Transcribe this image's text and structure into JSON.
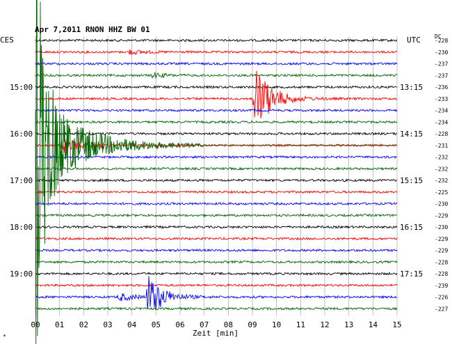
{
  "chart_data": {
    "type": "line",
    "title": "Apr 7,2011    RNON HHZ BW 01",
    "left_corner_label": "CES",
    "right_corner_label": "UTC",
    "dc_header": "DC",
    "xlabel": "Zeit [min]",
    "x_ticks": [
      "00",
      "01",
      "02",
      "03",
      "04",
      "05",
      "06",
      "07",
      "08",
      "09",
      "10",
      "11",
      "12",
      "13",
      "14",
      "15"
    ],
    "xlim": [
      0,
      15
    ],
    "left_hour_labels": [
      {
        "trace": 4,
        "label": "15:00"
      },
      {
        "trace": 8,
        "label": "16:00"
      },
      {
        "trace": 12,
        "label": "17:00"
      },
      {
        "trace": 16,
        "label": "18:00"
      },
      {
        "trace": 20,
        "label": "19:00"
      }
    ],
    "right_hour_labels": [
      {
        "trace": 4,
        "label": "13:15"
      },
      {
        "trace": 8,
        "label": "14:15"
      },
      {
        "trace": 12,
        "label": "15:15"
      },
      {
        "trace": 16,
        "label": "16:15"
      },
      {
        "trace": 20,
        "label": "17:15"
      }
    ],
    "dc_offsets": [
      "-228",
      "-230",
      "-237",
      "-237",
      "-236",
      "-233",
      "-234",
      "-234",
      "-228",
      "-231",
      "-232",
      "-232",
      "-232",
      "-225",
      "-230",
      "-229",
      "-230",
      "-229",
      "-229",
      "-228",
      "-228",
      "-239",
      "-226",
      "-227"
    ],
    "trace_colors": [
      "#000000",
      "#ff0000",
      "#0000ff",
      "#006400"
    ],
    "events": [
      {
        "trace": 1,
        "start_min": 3.8,
        "peak": 4,
        "decay": 1.5
      },
      {
        "trace": 3,
        "start_min": 4.8,
        "peak": 5,
        "decay": 1.2
      },
      {
        "trace": 5,
        "start_min": 9.0,
        "peak": 60,
        "decay": 1.8
      },
      {
        "trace": 9,
        "start_min": 0.0,
        "peak": 85,
        "decay": 3.5,
        "color": "#006400"
      },
      {
        "trace": 9,
        "start_min": 1.0,
        "peak": 12,
        "decay": 2.2
      },
      {
        "trace": 22,
        "start_min": 3.4,
        "peak": 6,
        "decay": 1.8
      },
      {
        "trace": 22,
        "start_min": 4.6,
        "peak": 38,
        "decay": 1.6
      }
    ],
    "grid": true,
    "corner_mark": "*"
  }
}
